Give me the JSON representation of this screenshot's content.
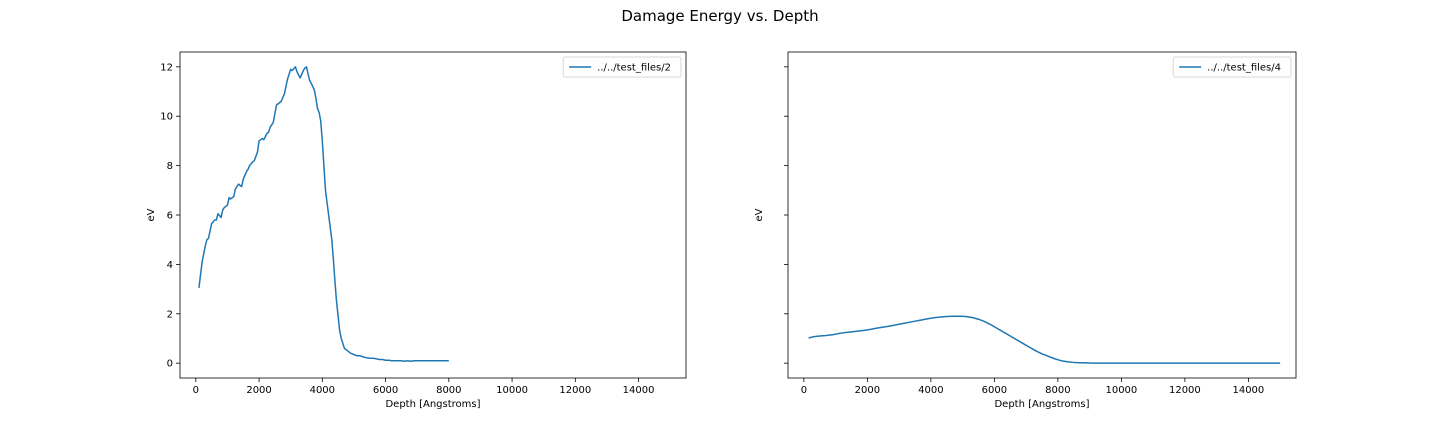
{
  "figure": {
    "title": "Damage Energy vs. Depth"
  },
  "colors": {
    "series": "#1f77b4",
    "frame": "#000000",
    "legend_border": "#cccccc"
  },
  "chart_data": [
    {
      "type": "line",
      "xlabel": "Depth [Angstroms]",
      "ylabel": "eV",
      "xlim": [
        -500,
        15500
      ],
      "ylim": [
        -0.6,
        12.6
      ],
      "xticks": [
        0,
        2000,
        4000,
        6000,
        8000,
        10000,
        12000,
        14000
      ],
      "yticks": [
        0,
        2,
        4,
        6,
        8,
        10,
        12
      ],
      "show_ytick_labels": true,
      "grid": false,
      "legend_position": "upper right",
      "series": [
        {
          "name": "../../test_files/2",
          "x": [
            100,
            150,
            200,
            300,
            350,
            400,
            500,
            600,
            650,
            700,
            800,
            850,
            900,
            1000,
            1050,
            1100,
            1200,
            1250,
            1350,
            1400,
            1450,
            1500,
            1600,
            1650,
            1700,
            1800,
            1850,
            1950,
            2000,
            2100,
            2150,
            2250,
            2300,
            2350,
            2450,
            2500,
            2550,
            2650,
            2700,
            2800,
            2850,
            2900,
            3000,
            3050,
            3150,
            3200,
            3300,
            3400,
            3450,
            3500,
            3550,
            3600,
            3700,
            3750,
            3800,
            3850,
            3900,
            3950,
            4000,
            4050,
            4100,
            4200,
            4300,
            4350,
            4400,
            4450,
            4500,
            4550,
            4600,
            4650,
            4700,
            4800,
            4900,
            5000,
            5100,
            5200,
            5300,
            5400,
            5500,
            5600,
            5700,
            5800,
            5900,
            6000,
            6100,
            6200,
            6300,
            6400,
            6500,
            6600,
            6700,
            6800,
            6900,
            7000,
            7100,
            7200,
            7300,
            7400,
            7500,
            7600,
            7700,
            7800,
            7900,
            8000
          ],
          "y": [
            3.05,
            3.6,
            4.1,
            4.75,
            5.0,
            5.05,
            5.65,
            5.8,
            5.8,
            6.05,
            5.9,
            6.2,
            6.3,
            6.4,
            6.7,
            6.65,
            6.75,
            7.05,
            7.25,
            7.2,
            7.15,
            7.45,
            7.75,
            7.85,
            8.0,
            8.15,
            8.2,
            8.55,
            9.0,
            9.1,
            9.05,
            9.3,
            9.35,
            9.55,
            9.75,
            10.1,
            10.45,
            10.55,
            10.6,
            10.9,
            11.2,
            11.5,
            11.9,
            11.85,
            12.0,
            11.8,
            11.55,
            11.85,
            11.95,
            12.0,
            11.7,
            11.45,
            11.2,
            11.05,
            10.7,
            10.3,
            10.15,
            9.8,
            9.0,
            8.0,
            7.0,
            6.0,
            5.0,
            4.2,
            3.3,
            2.5,
            1.9,
            1.3,
            1.0,
            0.8,
            0.6,
            0.5,
            0.4,
            0.35,
            0.3,
            0.3,
            0.25,
            0.22,
            0.2,
            0.2,
            0.18,
            0.15,
            0.15,
            0.12,
            0.12,
            0.1,
            0.1,
            0.1,
            0.1,
            0.08,
            0.1,
            0.08,
            0.1,
            0.1,
            0.1,
            0.1,
            0.1,
            0.1,
            0.1,
            0.1,
            0.1,
            0.1,
            0.1,
            0.1
          ]
        }
      ]
    },
    {
      "type": "line",
      "xlabel": "Depth [Angstroms]",
      "ylabel": "eV",
      "xlim": [
        -500,
        15500
      ],
      "ylim": [
        -0.6,
        12.6
      ],
      "xticks": [
        0,
        2000,
        4000,
        6000,
        8000,
        10000,
        12000,
        14000
      ],
      "yticks": [
        0,
        2,
        4,
        6,
        8,
        10,
        12
      ],
      "show_ytick_labels": false,
      "grid": false,
      "legend_position": "upper right",
      "series": [
        {
          "name": "../../test_files/4",
          "x": [
            150,
            300,
            500,
            700,
            900,
            1100,
            1300,
            1500,
            1700,
            1900,
            2100,
            2300,
            2500,
            2700,
            2900,
            3100,
            3300,
            3500,
            3700,
            3900,
            4100,
            4300,
            4500,
            4700,
            4900,
            5100,
            5300,
            5500,
            5700,
            5900,
            6100,
            6300,
            6500,
            6700,
            6900,
            7100,
            7300,
            7500,
            7700,
            7900,
            8100,
            8300,
            8500,
            8700,
            8900,
            9100,
            9500,
            10000,
            10500,
            11000,
            11500,
            12000,
            12500,
            13000,
            13500,
            14000,
            14500,
            15000
          ],
          "y": [
            1.02,
            1.07,
            1.1,
            1.12,
            1.15,
            1.2,
            1.24,
            1.27,
            1.3,
            1.33,
            1.37,
            1.42,
            1.46,
            1.5,
            1.55,
            1.6,
            1.65,
            1.7,
            1.75,
            1.8,
            1.84,
            1.87,
            1.89,
            1.9,
            1.9,
            1.89,
            1.85,
            1.78,
            1.68,
            1.55,
            1.4,
            1.25,
            1.1,
            0.95,
            0.8,
            0.65,
            0.5,
            0.38,
            0.28,
            0.18,
            0.1,
            0.06,
            0.03,
            0.02,
            0.01,
            0.0,
            0.0,
            0.0,
            0.0,
            0.0,
            0.0,
            0.0,
            0.0,
            0.0,
            0.0,
            0.0,
            0.0,
            0.0
          ]
        }
      ]
    }
  ]
}
